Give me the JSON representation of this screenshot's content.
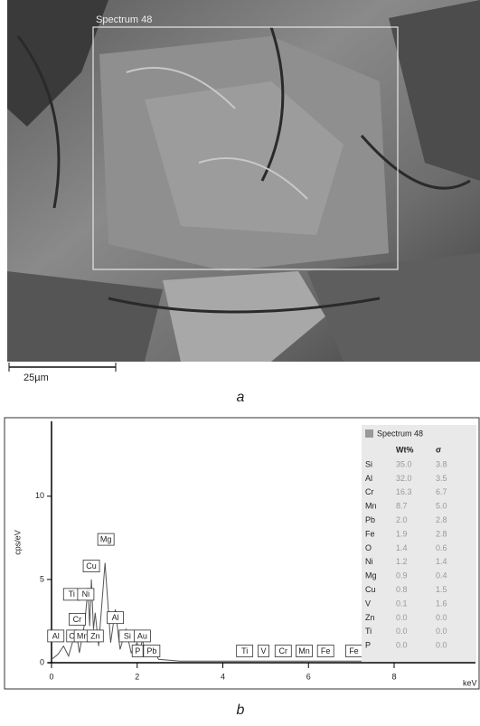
{
  "figure_a": {
    "region_label": "Spectrum 48",
    "scale_bar": "25µm",
    "caption": "a"
  },
  "caption_b": "b",
  "chart_data": {
    "type": "line",
    "y_label": "cps/eV",
    "x_label": "keV",
    "color": "#555555",
    "xlim": [
      0,
      9.9
    ],
    "ylim": [
      0,
      14.5
    ],
    "xticks": [
      0,
      2,
      4,
      6,
      8
    ],
    "yticks": [
      0,
      5,
      10
    ],
    "x": [
      0,
      0.15,
      0.28,
      0.4,
      0.52,
      0.57,
      0.65,
      0.78,
      0.85,
      0.89,
      0.93,
      0.98,
      1.02,
      1.1,
      1.25,
      1.38,
      1.49,
      1.6,
      1.74,
      1.86,
      2.0,
      2.06,
      2.12,
      2.22,
      2.34,
      2.5,
      3.0,
      4.5,
      5.0,
      6.0,
      7.0,
      8.0,
      9.9
    ],
    "y": [
      0.2,
      0.5,
      1.0,
      0.4,
      1.5,
      2.0,
      0.6,
      2.5,
      4.5,
      2.2,
      5.0,
      2.0,
      3.0,
      1.0,
      6.0,
      1.2,
      3.2,
      0.8,
      2.0,
      0.6,
      1.2,
      0.5,
      1.4,
      0.4,
      1.0,
      0.2,
      0.1,
      0.1,
      0.1,
      0.1,
      0.1,
      0.1,
      0.1
    ],
    "annotations": [
      {
        "text": "Al",
        "x": 0.1,
        "y": 1.2
      },
      {
        "text": "O",
        "x": 0.48,
        "y": 1.2
      },
      {
        "text": "Ti",
        "x": 0.47,
        "y": 3.7
      },
      {
        "text": "Ni",
        "x": 0.8,
        "y": 3.7
      },
      {
        "text": "Cr",
        "x": 0.6,
        "y": 2.2
      },
      {
        "text": "Mn",
        "x": 0.72,
        "y": 1.2
      },
      {
        "text": "Zn",
        "x": 1.02,
        "y": 1.2
      },
      {
        "text": "Cu",
        "x": 0.93,
        "y": 5.4
      },
      {
        "text": "Mg",
        "x": 1.27,
        "y": 7.0
      },
      {
        "text": "Al",
        "x": 1.49,
        "y": 2.3
      },
      {
        "text": "Si",
        "x": 1.77,
        "y": 1.2
      },
      {
        "text": "Au",
        "x": 2.12,
        "y": 1.2
      },
      {
        "text": "P",
        "x": 2.01,
        "y": 0.3
      },
      {
        "text": "Pb",
        "x": 2.34,
        "y": 0.3
      },
      {
        "text": "Ti",
        "x": 4.51,
        "y": 0.3
      },
      {
        "text": "V",
        "x": 4.95,
        "y": 0.3
      },
      {
        "text": "Cr",
        "x": 5.41,
        "y": 0.3
      },
      {
        "text": "Mn",
        "x": 5.9,
        "y": 0.3
      },
      {
        "text": "Fe",
        "x": 6.4,
        "y": 0.3
      },
      {
        "text": "Fe",
        "x": 7.06,
        "y": 0.3
      }
    ],
    "table": {
      "title": "Spectrum 48",
      "headers": [
        "Wt%",
        "σ"
      ],
      "rows": [
        [
          "Si",
          "35.0",
          "3.8"
        ],
        [
          "Al",
          "32.0",
          "3.5"
        ],
        [
          "Cr",
          "16.3",
          "6.7"
        ],
        [
          "Mn",
          "8.7",
          "5.0"
        ],
        [
          "Pb",
          "2.0",
          "2.8"
        ],
        [
          "Fe",
          "1.9",
          "2.8"
        ],
        [
          "O",
          "1.4",
          "0.6"
        ],
        [
          "Ni",
          "1.2",
          "1.4"
        ],
        [
          "Mg",
          "0.9",
          "0.4"
        ],
        [
          "Cu",
          "0.8",
          "1.5"
        ],
        [
          "V",
          "0.1",
          "1.6"
        ],
        [
          "Zn",
          "0.0",
          "0.0"
        ],
        [
          "Ti",
          "0.0",
          "0.0"
        ],
        [
          "P",
          "0.0",
          "0.0"
        ]
      ]
    }
  }
}
